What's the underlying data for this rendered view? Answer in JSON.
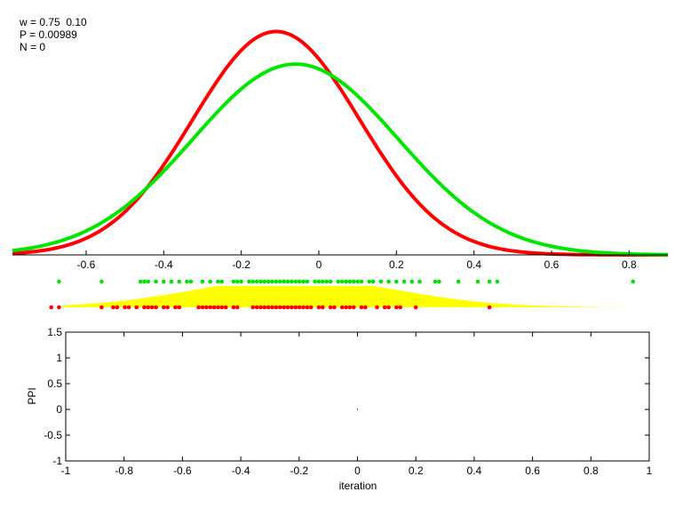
{
  "stats": {
    "w_line": "w = 0.75  0.10",
    "p_line": "P = 0.00989",
    "n_line": "N = 0"
  },
  "colors": {
    "series_red": "#ff0000",
    "series_green": "#00e600",
    "density_fill": "#ffff00",
    "axis": "#000000"
  },
  "chart_data": [
    {
      "type": "line",
      "xlim": [
        -0.79,
        0.9
      ],
      "ylim": [
        0,
        1.0
      ],
      "x_ticks": [
        -0.6,
        -0.4,
        -0.2,
        0,
        0.2,
        0.4,
        0.6,
        0.8
      ],
      "x_tick_labels": [
        "-0.6",
        "-0.4",
        "-0.2",
        "0",
        "0.2",
        "0.4",
        "0.6",
        "0.8"
      ],
      "grid": false,
      "series": [
        {
          "color": "red",
          "model": "gaussian",
          "mean": -0.11,
          "sd": 0.215,
          "peak": 0.96
        },
        {
          "color": "green",
          "model": "gaussian",
          "mean": -0.06,
          "sd": 0.265,
          "peak": 0.82
        }
      ]
    },
    {
      "type": "scatter",
      "xlim": [
        -0.79,
        0.9
      ],
      "green_points": [
        -0.67,
        -0.56,
        -0.46,
        -0.45,
        -0.44,
        -0.42,
        -0.4,
        -0.38,
        -0.36,
        -0.34,
        -0.33,
        -0.3,
        -0.28,
        -0.26,
        -0.25,
        -0.22,
        -0.21,
        -0.2,
        -0.18,
        -0.17,
        -0.16,
        -0.15,
        -0.14,
        -0.13,
        -0.12,
        -0.11,
        -0.1,
        -0.09,
        -0.08,
        -0.07,
        -0.06,
        -0.05,
        -0.04,
        -0.03,
        -0.01,
        0.0,
        0.01,
        0.02,
        0.03,
        0.05,
        0.06,
        0.07,
        0.08,
        0.09,
        0.1,
        0.11,
        0.13,
        0.14,
        0.16,
        0.18,
        0.2,
        0.22,
        0.24,
        0.26,
        0.3,
        0.31,
        0.36,
        0.41,
        0.44,
        0.46,
        0.81
      ],
      "red_points": [
        -0.69,
        -0.67,
        -0.56,
        -0.53,
        -0.52,
        -0.5,
        -0.49,
        -0.47,
        -0.45,
        -0.44,
        -0.43,
        -0.42,
        -0.4,
        -0.39,
        -0.37,
        -0.36,
        -0.31,
        -0.3,
        -0.29,
        -0.28,
        -0.27,
        -0.26,
        -0.25,
        -0.24,
        -0.22,
        -0.21,
        -0.17,
        -0.16,
        -0.15,
        -0.14,
        -0.13,
        -0.12,
        -0.11,
        -0.1,
        -0.09,
        -0.08,
        -0.07,
        -0.06,
        -0.05,
        -0.04,
        -0.03,
        -0.02,
        0.0,
        0.01,
        0.03,
        0.04,
        0.06,
        0.07,
        0.08,
        0.09,
        0.11,
        0.12,
        0.15,
        0.17,
        0.18,
        0.2,
        0.21,
        0.25
      ],
      "extra_red_points": [
        0.44
      ],
      "density": {
        "model": "gaussian",
        "mean": -0.06,
        "sd": 0.26,
        "xmin": -0.66,
        "xmax": 0.78
      }
    },
    {
      "type": "scatter",
      "xlim": [
        -1,
        1
      ],
      "ylim": [
        -1,
        1.5
      ],
      "ylabel": "PPI",
      "xlabel": "iteration",
      "x_ticks": [
        -1,
        -0.8,
        -0.6,
        -0.4,
        -0.2,
        0,
        0.2,
        0.4,
        0.6,
        0.8,
        1
      ],
      "x_tick_labels": [
        "-1",
        "-0.8",
        "-0.6",
        "-0.4",
        "-0.2",
        "0",
        "0.2",
        "0.4",
        "0.6",
        "0.8",
        "1"
      ],
      "y_ticks": [
        -1,
        -0.5,
        0,
        0.5,
        1,
        1.5
      ],
      "y_tick_labels": [
        "-1",
        "-0.5",
        "0",
        "0.5",
        "1",
        "1.5"
      ],
      "points": [
        [
          0,
          0
        ]
      ],
      "grid": false
    }
  ]
}
